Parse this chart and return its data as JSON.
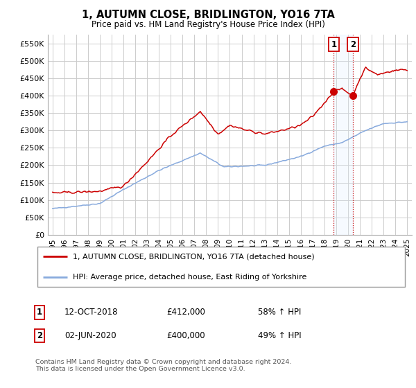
{
  "title": "1, AUTUMN CLOSE, BRIDLINGTON, YO16 7TA",
  "subtitle": "Price paid vs. HM Land Registry's House Price Index (HPI)",
  "legend_label_red": "1, AUTUMN CLOSE, BRIDLINGTON, YO16 7TA (detached house)",
  "legend_label_blue": "HPI: Average price, detached house, East Riding of Yorkshire",
  "annotation1_date": "12-OCT-2018",
  "annotation1_price": "£412,000",
  "annotation1_hpi": "58% ↑ HPI",
  "annotation2_date": "02-JUN-2020",
  "annotation2_price": "£400,000",
  "annotation2_hpi": "49% ↑ HPI",
  "footer": "Contains HM Land Registry data © Crown copyright and database right 2024.\nThis data is licensed under the Open Government Licence v3.0.",
  "ylim": [
    0,
    575000
  ],
  "ytick_values": [
    0,
    50000,
    100000,
    150000,
    200000,
    250000,
    300000,
    350000,
    400000,
    450000,
    500000,
    550000
  ],
  "ytick_labels": [
    "£0",
    "£50K",
    "£100K",
    "£150K",
    "£200K",
    "£250K",
    "£300K",
    "£350K",
    "£400K",
    "£450K",
    "£500K",
    "£550K"
  ],
  "red_color": "#cc0000",
  "blue_color": "#88aadd",
  "grid_color": "#cccccc",
  "vline_color": "#cc0000",
  "vfill_color": "#ddeeff",
  "sale1_t": 2018.792,
  "sale1_y": 412000,
  "sale2_t": 2020.417,
  "sale2_y": 400000,
  "xlim_min": 1994.6,
  "xlim_max": 2025.4
}
